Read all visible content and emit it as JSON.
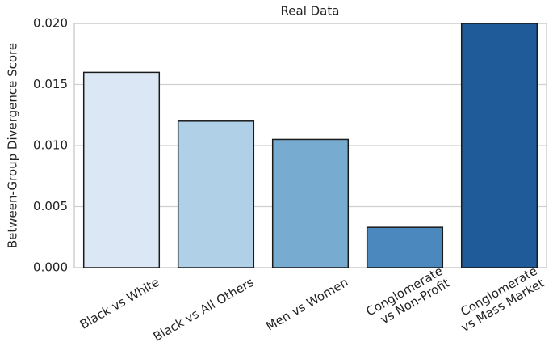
{
  "chart_data": {
    "type": "bar",
    "title": "Real Data",
    "ylabel": "Between-Group Divergence Score",
    "categories": [
      "Black vs White",
      "Black vs All Others",
      "Men vs Women",
      "Conglomerate\nvs Non-Profit",
      "Conglomerate\nvs Mass Market"
    ],
    "values": [
      0.016,
      0.012,
      0.0105,
      0.0033,
      0.02
    ],
    "colors": [
      "#dbe7f4",
      "#afd0e6",
      "#77abd0",
      "#4a88be",
      "#1f5b99"
    ],
    "ylim": [
      0,
      0.02
    ],
    "yticks": [
      {
        "value": 0,
        "label": "0.000"
      },
      {
        "value": 0.005,
        "label": "0.005"
      },
      {
        "value": 0.01,
        "label": "0.010"
      },
      {
        "value": 0.015,
        "label": "0.015"
      },
      {
        "value": 0.02,
        "label": "0.020"
      }
    ],
    "grid": true
  }
}
